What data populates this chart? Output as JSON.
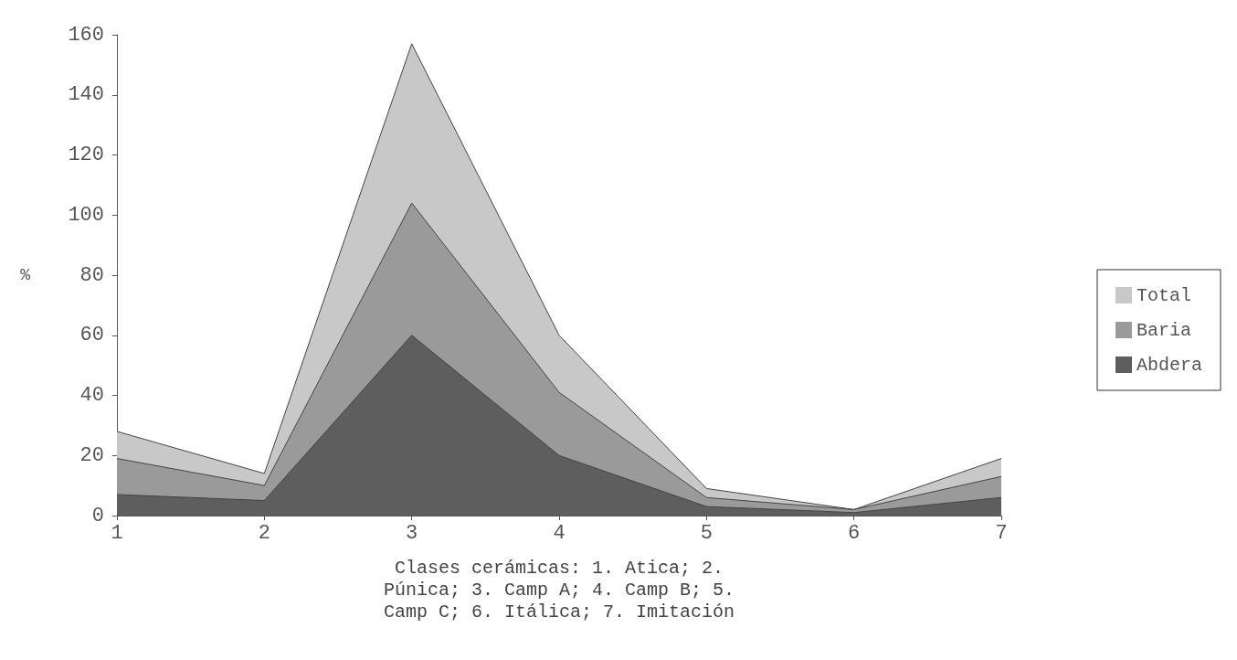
{
  "chart_data": {
    "type": "area",
    "xlabel": "Clases cerámicas: 1. Atica; 2. Púnica; 3. Camp A; 4. Camp B; 5. Camp C; 6. Itálica; 7. Imitación",
    "ylabel": "%",
    "x": [
      1,
      2,
      3,
      4,
      5,
      6,
      7
    ],
    "xlim": [
      1,
      7
    ],
    "xticks": [
      1,
      2,
      3,
      4,
      5,
      6,
      7
    ],
    "ylim": [
      0,
      160
    ],
    "yticks": [
      0,
      20,
      40,
      60,
      80,
      100,
      120,
      140,
      160
    ],
    "series": [
      {
        "name": "Total",
        "color": "#c8c8c8",
        "values": [
          28,
          14,
          157,
          60,
          9,
          2,
          19
        ]
      },
      {
        "name": "Baria",
        "color": "#9a9a9a",
        "values": [
          19,
          10,
          104,
          41,
          6,
          2,
          13
        ]
      },
      {
        "name": "Abdera",
        "color": "#5e5e5e",
        "values": [
          7,
          5,
          60,
          20,
          3,
          1,
          6
        ]
      }
    ],
    "legend": "right",
    "grid": false,
    "marker": "none"
  }
}
